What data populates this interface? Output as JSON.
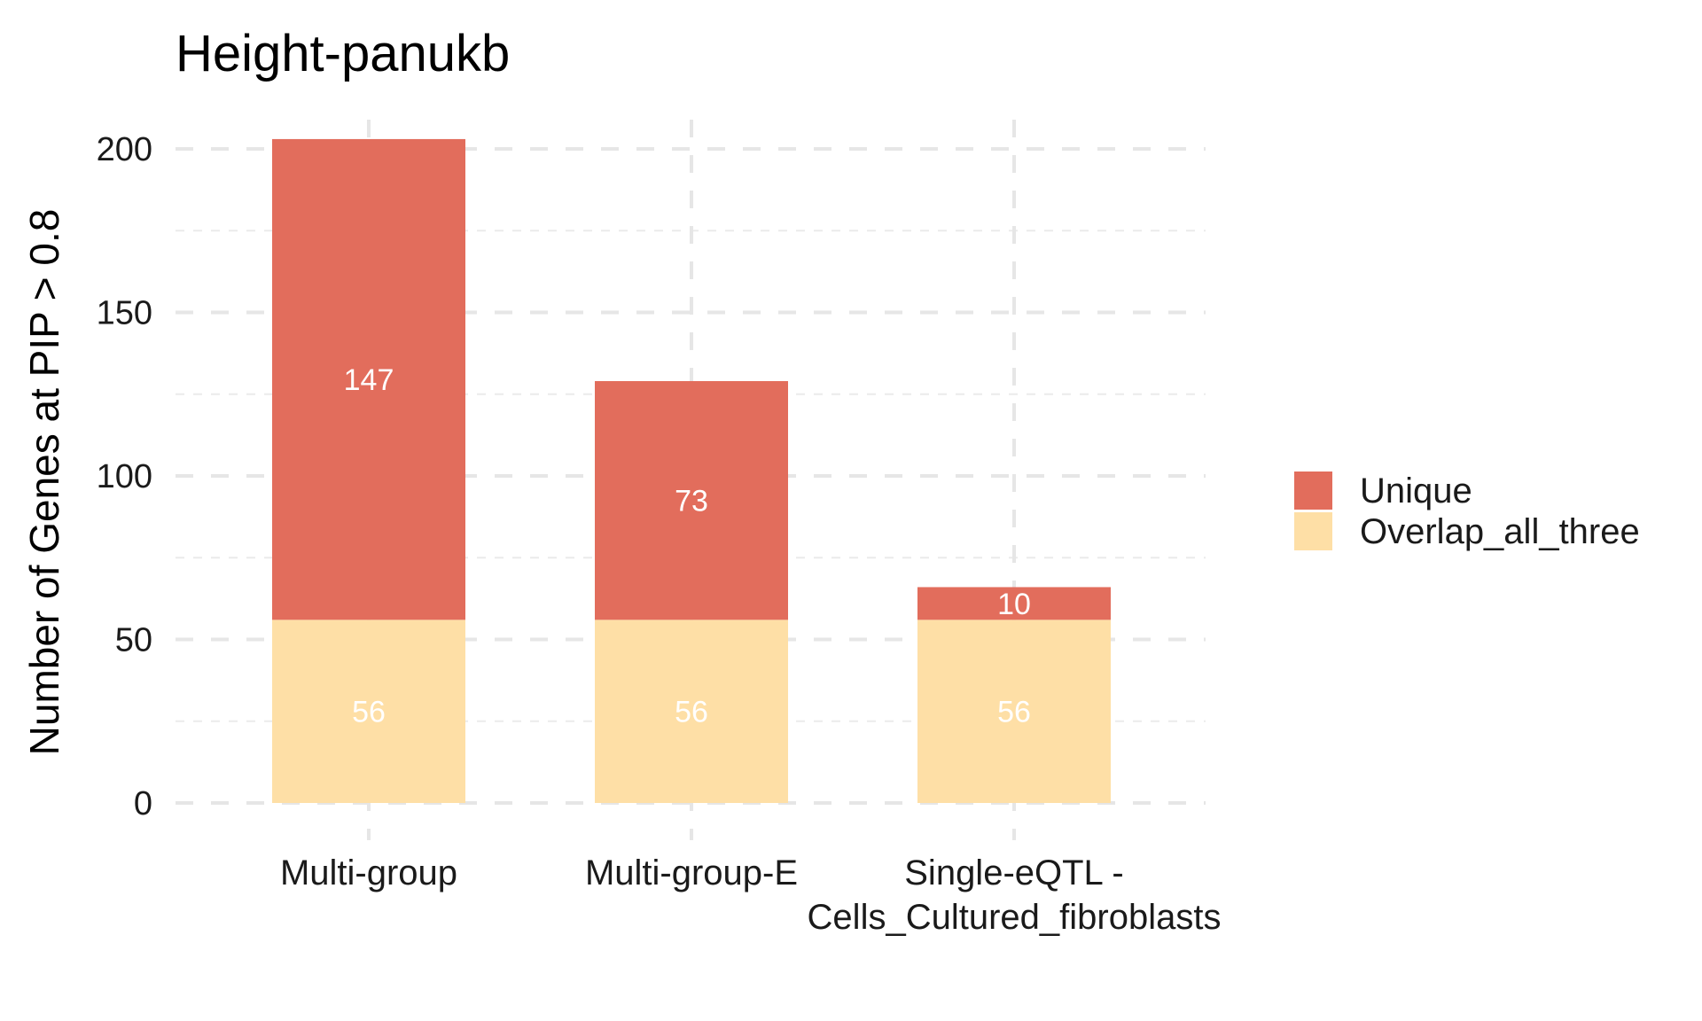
{
  "chart_data": {
    "type": "bar",
    "stacked": true,
    "title": "Height-panukb",
    "xlabel": "",
    "ylabel": "Number of Genes at PIP > 0.8",
    "ylim": [
      0,
      210
    ],
    "yticks": [
      0,
      50,
      100,
      150,
      200
    ],
    "grid": true,
    "legend_position": "right",
    "categories": [
      [
        "Multi-group"
      ],
      [
        "Multi-group-E"
      ],
      [
        "Single-eQTL -",
        "Cells_Cultured_fibroblasts"
      ]
    ],
    "series": [
      {
        "name": "Overlap_all_three",
        "color": "#FEDFA6",
        "values": [
          56,
          56,
          56
        ]
      },
      {
        "name": "Unique",
        "color": "#E26D5C",
        "values": [
          147,
          73,
          10
        ]
      }
    ],
    "legend_order": [
      "Unique",
      "Overlap_all_three"
    ]
  }
}
